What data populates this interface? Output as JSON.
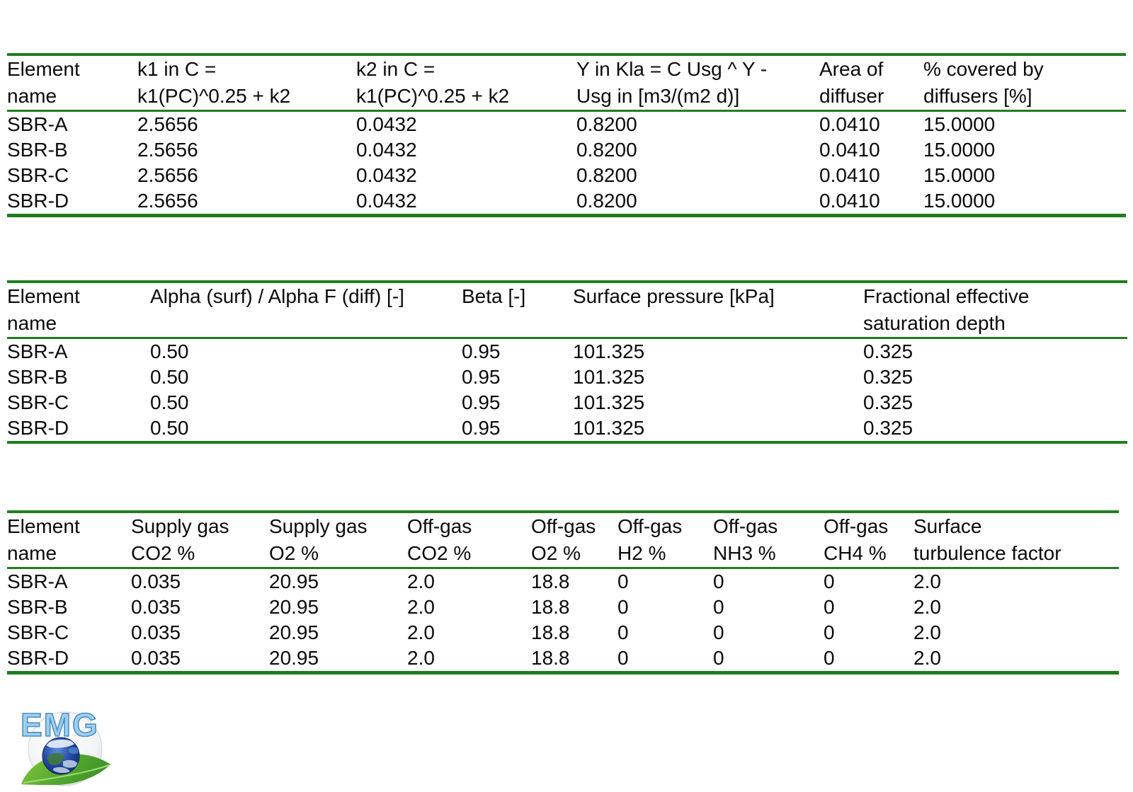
{
  "colors": {
    "rule_green": "#1f7d1f",
    "text": "#0a0a0a",
    "logo_letter_fill": "#9fd0ec",
    "logo_letter_stroke": "#4e90c6",
    "leaf_green": "#55ab2f",
    "globe_blue": "#16337f"
  },
  "logo": {
    "text": "EMG"
  },
  "tables": [
    {
      "title": "kla-and-diffuser-parameters",
      "columns": [
        {
          "line1": "Element",
          "line2": "name"
        },
        {
          "line1": "k1 in C =",
          "line2": "k1(PC)^0.25 + k2"
        },
        {
          "line1": "k2 in C =",
          "line2": "k1(PC)^0.25 + k2"
        },
        {
          "line1": "Y in Kla = C Usg ^ Y -",
          "line2": "Usg in [m3/(m2 d)]"
        },
        {
          "line1": "Area of",
          "line2": "diffuser"
        },
        {
          "line1": "% covered by",
          "line2": "diffusers [%]"
        }
      ],
      "rows": [
        [
          "SBR-A",
          "2.5656",
          "0.0432",
          "0.8200",
          "0.0410",
          "15.0000"
        ],
        [
          "SBR-B",
          "2.5656",
          "0.0432",
          "0.8200",
          "0.0410",
          "15.0000"
        ],
        [
          "SBR-C",
          "2.5656",
          "0.0432",
          "0.8200",
          "0.0410",
          "15.0000"
        ],
        [
          "SBR-D",
          "2.5656",
          "0.0432",
          "0.8200",
          "0.0410",
          "15.0000"
        ]
      ]
    },
    {
      "title": "alpha-beta-pressure-parameters",
      "columns": [
        {
          "line1": "Element",
          "line2": "name"
        },
        {
          "line1": "Alpha (surf) / Alpha F (diff) [-]",
          "line2": ""
        },
        {
          "line1": "Beta [-]",
          "line2": ""
        },
        {
          "line1": "Surface pressure [kPa]",
          "line2": ""
        },
        {
          "line1": "Fractional effective",
          "line2": "saturation depth"
        }
      ],
      "rows": [
        [
          "SBR-A",
          "0.50",
          "0.95",
          "101.325",
          "0.325"
        ],
        [
          "SBR-B",
          "0.50",
          "0.95",
          "101.325",
          "0.325"
        ],
        [
          "SBR-C",
          "0.50",
          "0.95",
          "101.325",
          "0.325"
        ],
        [
          "SBR-D",
          "0.50",
          "0.95",
          "101.325",
          "0.325"
        ]
      ]
    },
    {
      "title": "gas-composition-parameters",
      "columns": [
        {
          "line1": "Element",
          "line2": "name"
        },
        {
          "line1": "Supply gas",
          "line2": "CO2 %"
        },
        {
          "line1": "Supply gas",
          "line2": "O2 %"
        },
        {
          "line1": "Off-gas",
          "line2": "CO2 %"
        },
        {
          "line1": "Off-gas",
          "line2": "O2 %"
        },
        {
          "line1": "Off-gas",
          "line2": "H2 %"
        },
        {
          "line1": "Off-gas",
          "line2": "NH3 %"
        },
        {
          "line1": "Off-gas",
          "line2": "CH4 %"
        },
        {
          "line1": "Surface",
          "line2": "turbulence factor"
        }
      ],
      "rows": [
        [
          "SBR-A",
          "0.035",
          "20.95",
          "2.0",
          "18.8",
          "0",
          "0",
          "0",
          "2.0"
        ],
        [
          "SBR-B",
          "0.035",
          "20.95",
          "2.0",
          "18.8",
          "0",
          "0",
          "0",
          "2.0"
        ],
        [
          "SBR-C",
          "0.035",
          "20.95",
          "2.0",
          "18.8",
          "0",
          "0",
          "0",
          "2.0"
        ],
        [
          "SBR-D",
          "0.035",
          "20.95",
          "2.0",
          "18.8",
          "0",
          "0",
          "0",
          "2.0"
        ]
      ]
    }
  ]
}
